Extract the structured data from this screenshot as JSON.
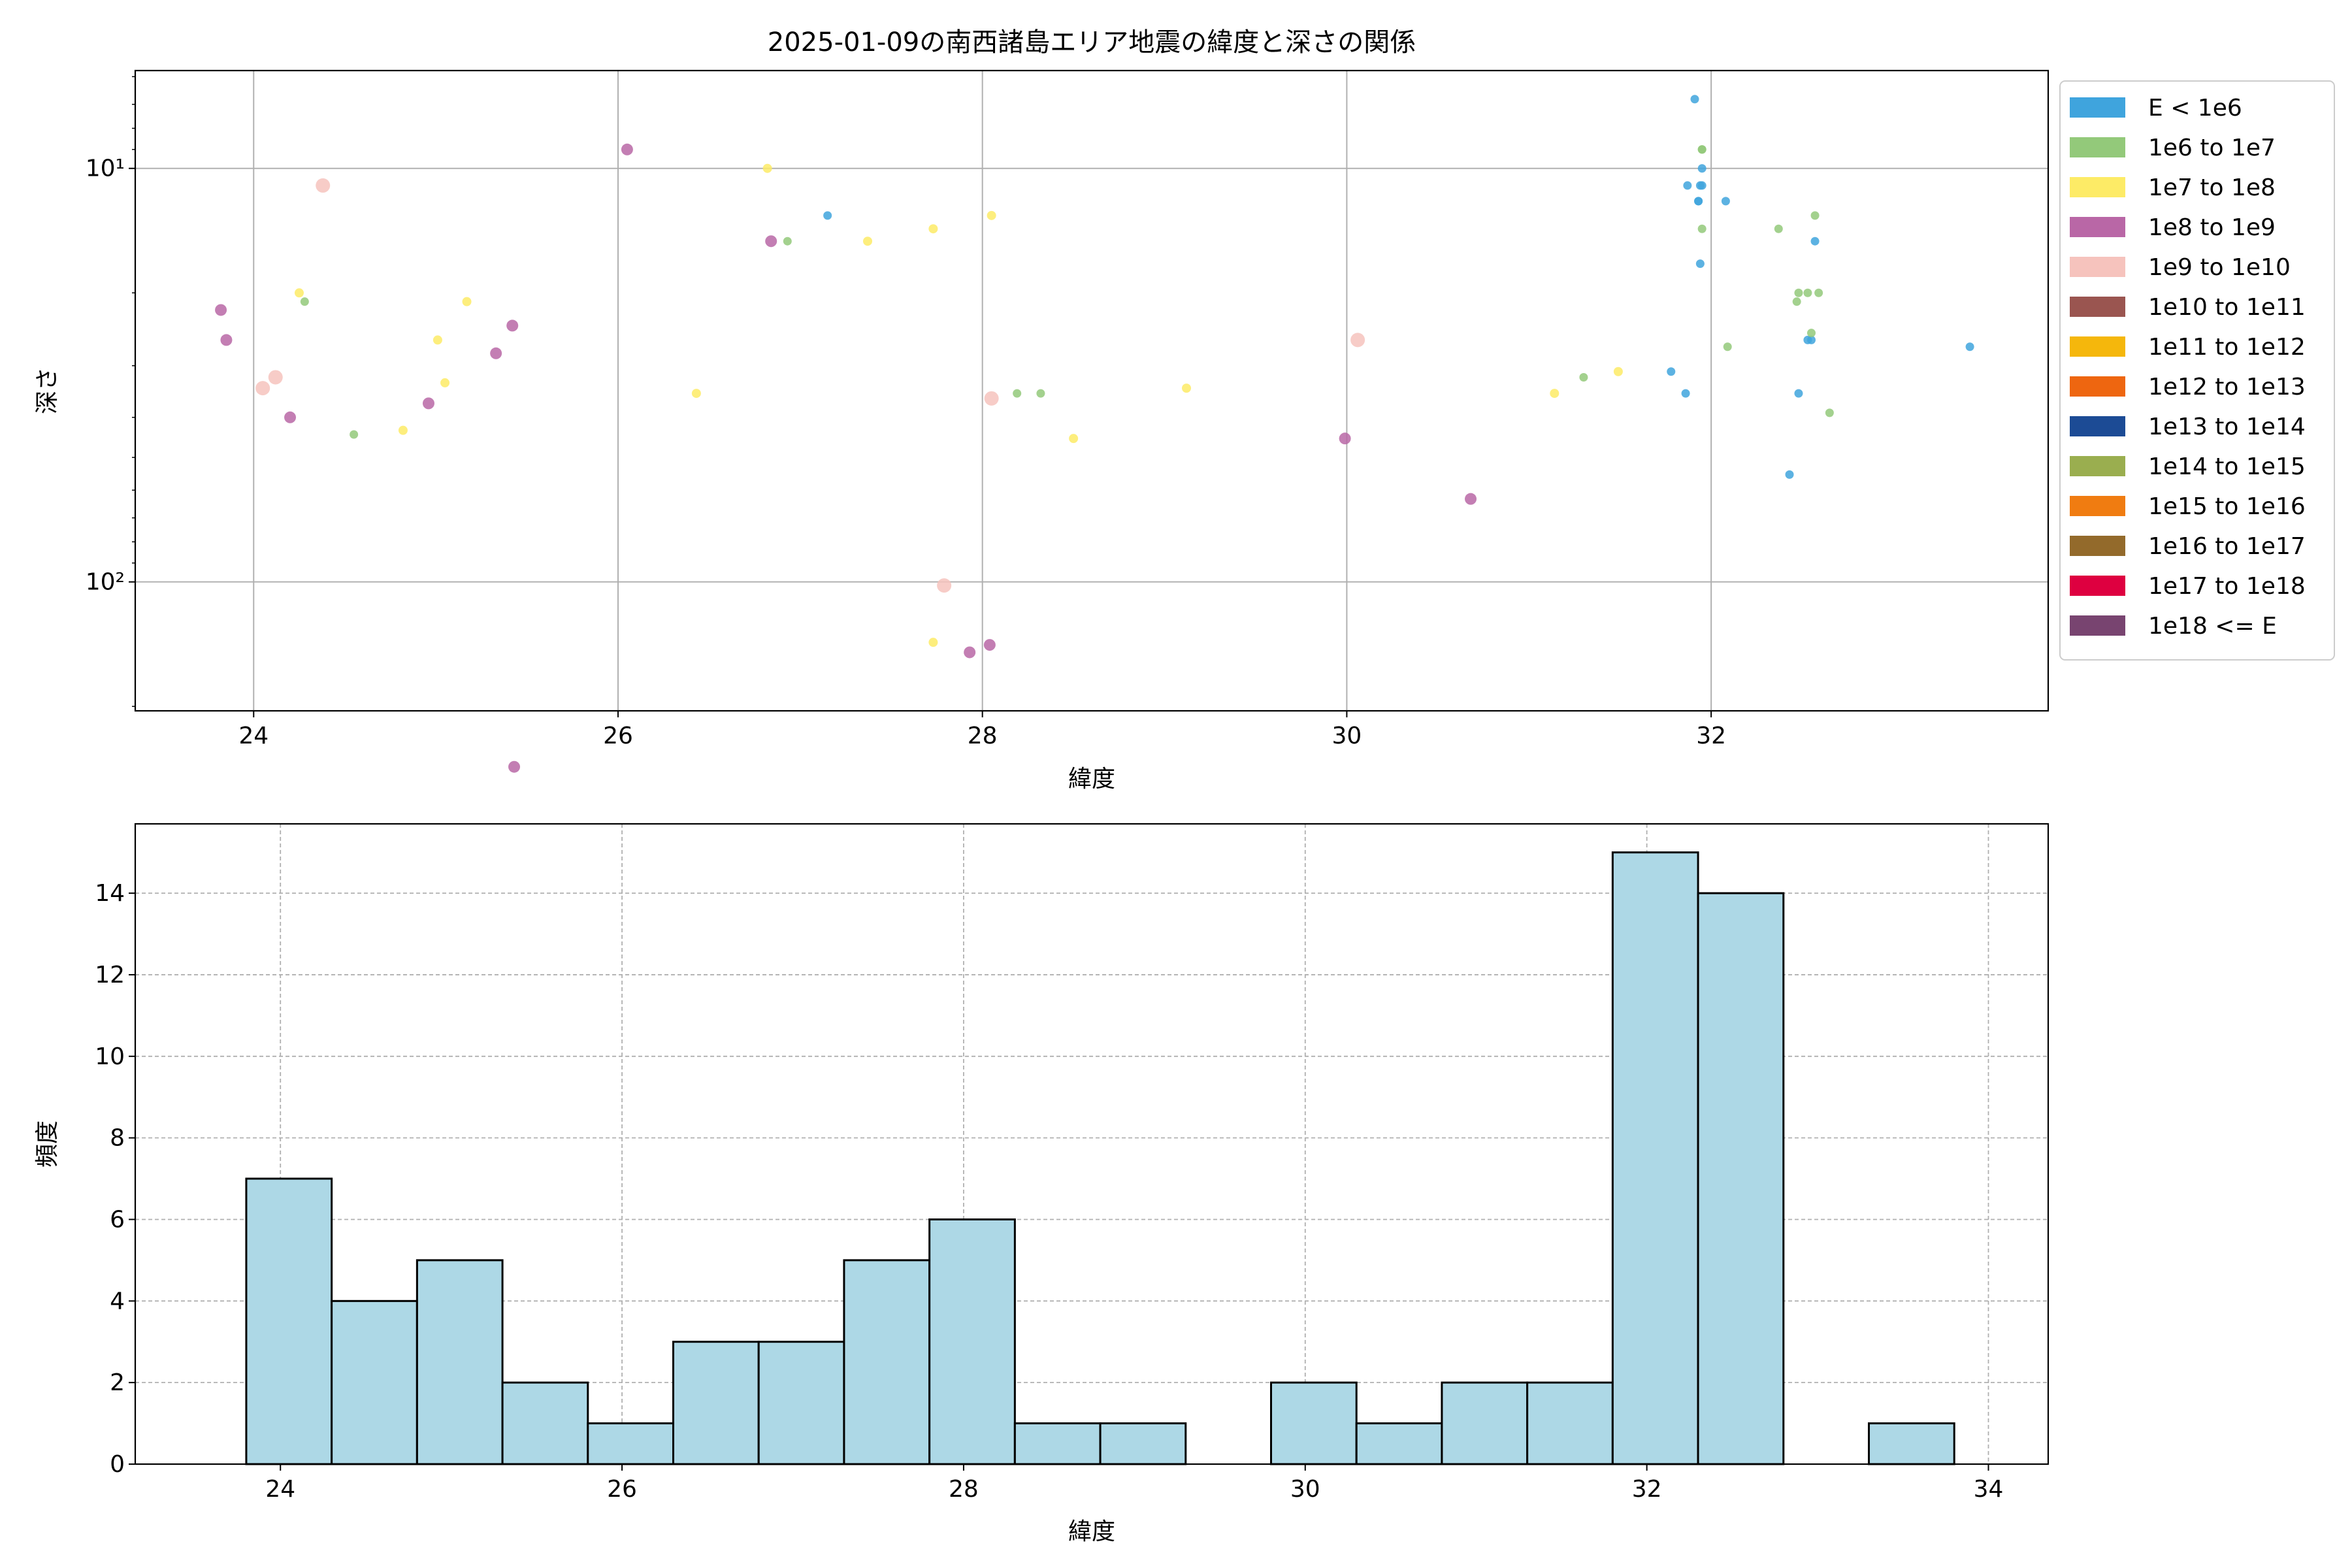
{
  "chart_data": [
    {
      "type": "scatter",
      "title": "2025-01-09の南西諸島エリア地震の緯度と深さの関係",
      "xlabel": "緯度",
      "ylabel": "深さ",
      "xlim": [
        23.35,
        33.85
      ],
      "ylim_log": [
        205,
        5.8
      ],
      "y_scale": "log",
      "y_inverted": true,
      "xticks": [
        24,
        26,
        28,
        30,
        32
      ],
      "xtick_labels": [
        "24",
        "26",
        "28",
        "30",
        "32"
      ],
      "yticks": [
        10,
        100
      ],
      "ytick_labels": [
        "10¹",
        "10²"
      ],
      "grid": true,
      "legend_position": "outside right",
      "legend": [
        {
          "label": "E < 1e6",
          "color": "#3fa4dd"
        },
        {
          "label": "1e6 to 1e7",
          "color": "#93c97a"
        },
        {
          "label": "1e7 to 1e8",
          "color": "#fdeb66"
        },
        {
          "label": "1e8 to 1e9",
          "color": "#b967a6"
        },
        {
          "label": "1e9 to 1e10",
          "color": "#f6c3bd"
        },
        {
          "label": "1e10 to 1e11",
          "color": "#9a5550"
        },
        {
          "label": "1e11 to 1e12",
          "color": "#f5b70c"
        },
        {
          "label": "1e12 to 1e13",
          "color": "#ee6610"
        },
        {
          "label": "1e13 to 1e14",
          "color": "#1c4b95"
        },
        {
          "label": "1e14 to 1e15",
          "color": "#9aae4f"
        },
        {
          "label": "1e15 to 1e16",
          "color": "#f07c11"
        },
        {
          "label": "1e16 to 1e17",
          "color": "#936a2b"
        },
        {
          "label": "1e17 to 1e18",
          "color": "#de0040"
        },
        {
          "label": "1e18 <= E",
          "color": "#784470"
        }
      ],
      "series": [
        {
          "class": 0,
          "x": [
            27.15,
            31.91,
            31.87,
            31.95,
            31.94,
            31.93,
            31.95,
            31.93,
            32.08,
            32.57,
            31.94,
            32.53,
            32.55,
            31.78,
            31.86,
            32.48,
            32.43,
            33.42
          ],
          "y": [
            13,
            6.8,
            11,
            10,
            11,
            12,
            11,
            12,
            12,
            15,
            17,
            26,
            26,
            31,
            35,
            35,
            55,
            27
          ]
        },
        {
          "class": 1,
          "x": [
            31.95,
            31.95,
            32.57,
            31.95,
            32.37,
            32.48,
            32.53,
            32.59,
            32.47,
            32.55,
            32.09,
            31.3,
            28.19,
            28.32,
            32.65,
            24.55,
            24.28,
            26.93
          ],
          "y": [
            9,
            9,
            13,
            14,
            14,
            20,
            20,
            20,
            21,
            25,
            27,
            32,
            35,
            35,
            39,
            44,
            21,
            15
          ]
        },
        {
          "class": 2,
          "x": [
            26.82,
            28.05,
            27.73,
            27.37,
            24.25,
            25.17,
            25.01,
            25.05,
            26.43,
            24.82,
            28.5,
            29.12,
            31.14,
            31.49,
            27.73
          ],
          "y": [
            10,
            13,
            14,
            15,
            20,
            21,
            26,
            33,
            35,
            43,
            45,
            34,
            35,
            31,
            140
          ]
        },
        {
          "class": 3,
          "x": [
            26.05,
            26.84,
            23.82,
            23.85,
            25.42,
            25.33,
            24.2,
            24.96,
            27.93,
            28.04,
            25.43,
            29.99,
            30.68
          ],
          "y": [
            9,
            15,
            22,
            26,
            24,
            28,
            40,
            37,
            148,
            142,
            280,
            45,
            63
          ]
        },
        {
          "class": 4,
          "x": [
            24.38,
            24.05,
            24.12,
            30.06,
            28.05,
            27.79
          ],
          "y": [
            11,
            34,
            32,
            26,
            36,
            102
          ]
        }
      ]
    },
    {
      "type": "bar",
      "subtype": "histogram",
      "xlabel": "緯度",
      "ylabel": "頻度",
      "xlim": [
        23.15,
        34.35
      ],
      "ylim": [
        0,
        15.7
      ],
      "xticks": [
        24,
        26,
        28,
        30,
        32,
        34
      ],
      "xtick_labels": [
        "24",
        "26",
        "28",
        "30",
        "32",
        "34"
      ],
      "yticks": [
        0,
        2,
        4,
        6,
        8,
        10,
        12,
        14
      ],
      "ytick_labels": [
        "0",
        "2",
        "4",
        "6",
        "8",
        "10",
        "12",
        "14"
      ],
      "grid": true,
      "bar_color": "#add8e6",
      "bin_edges": [
        23.8,
        24.3,
        24.8,
        25.3,
        25.8,
        26.3,
        26.8,
        27.3,
        27.8,
        28.3,
        28.8,
        29.3,
        29.8,
        30.3,
        30.8,
        31.3,
        31.8,
        32.3,
        32.8,
        33.3,
        33.8
      ],
      "counts": [
        7,
        4,
        5,
        2,
        1,
        3,
        3,
        5,
        6,
        1,
        1,
        0,
        2,
        1,
        2,
        2,
        15,
        14,
        0,
        1
      ]
    }
  ]
}
